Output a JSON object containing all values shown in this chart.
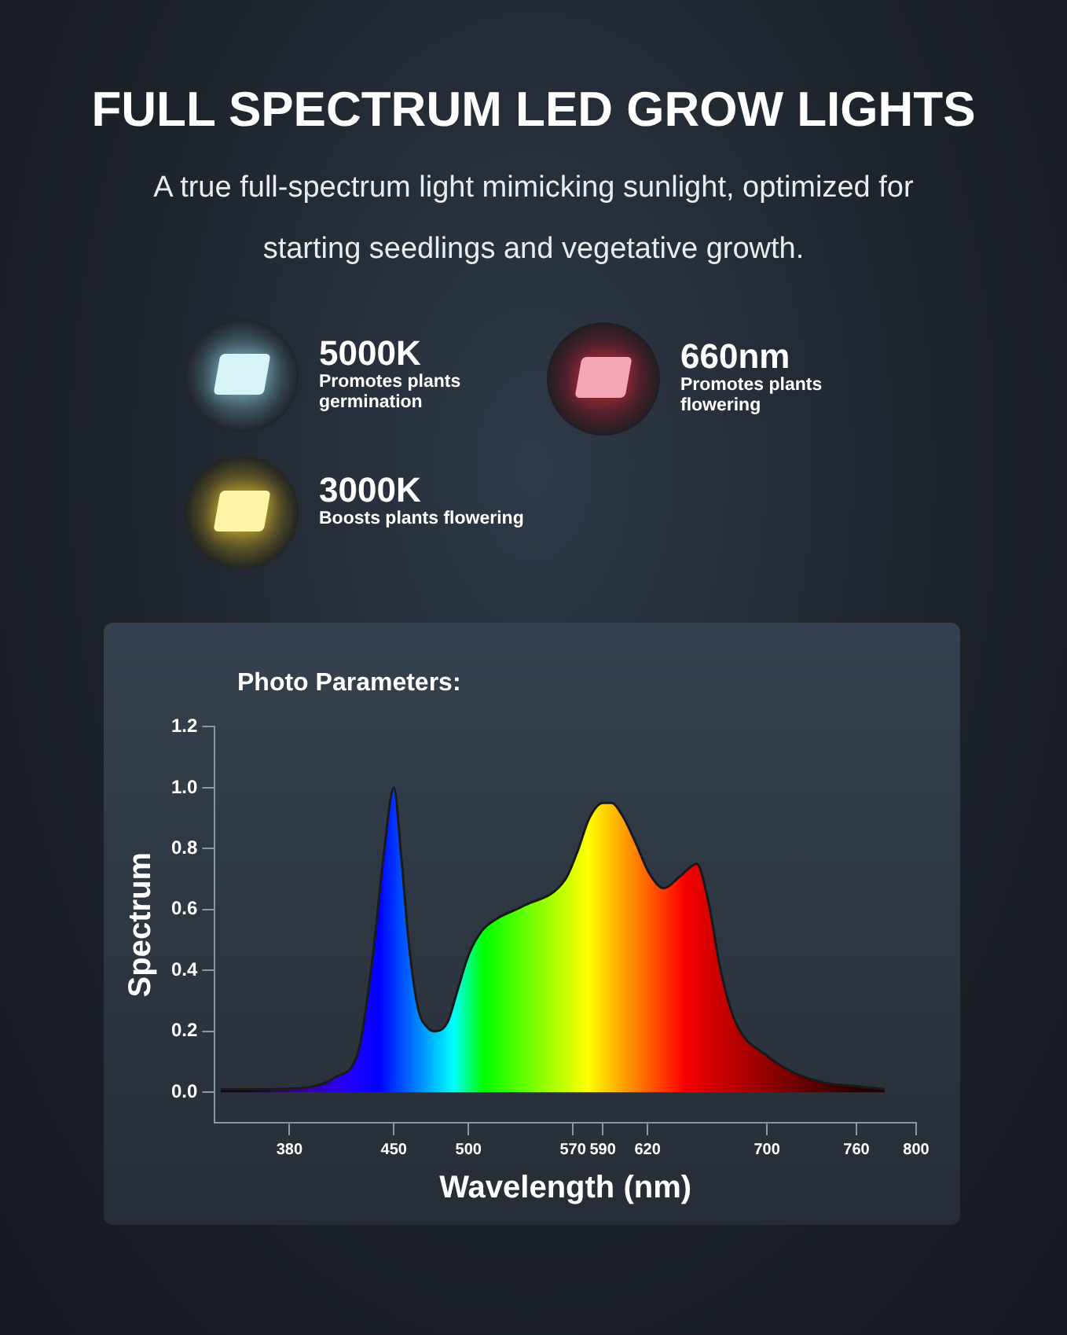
{
  "chart_data": {
    "type": "area",
    "title": "FULL SPECTRUM LED GROW LIGHTS",
    "subtitle": "A true full-spectrum light mimicking sunlight, optimized for starting seedlings and vegetative growth.",
    "annotations": [
      "Photo Parameters:",
      "5000K",
      "Promotes plants germination",
      "660nm",
      "Promotes plants flowering",
      "3000K",
      "Boosts plants flowering"
    ],
    "xlabel": "Wavelength (nm)",
    "ylabel": "Spectrum",
    "xlim": [
      330,
      800
    ],
    "xticks": [
      380,
      450,
      500,
      570,
      590,
      620,
      700,
      760,
      800
    ],
    "ylim": [
      -0.1,
      1.2
    ],
    "yticks": [
      {
        "value": 0,
        "label": "0.0"
      },
      {
        "value": 0.2,
        "label": "0.2"
      },
      {
        "value": 0.4,
        "label": "0.4"
      },
      {
        "value": 0.6,
        "label": "0.6"
      },
      {
        "value": 0.8,
        "label": "0.8"
      },
      {
        "value": 1.0,
        "label": "1.0"
      },
      {
        "value": 1.2,
        "label": "1.2"
      }
    ],
    "series": [
      {
        "color": "#1a1a1a",
        "x": [
          334,
          368,
          397,
          411,
          426,
          436,
          443,
          450,
          455,
          460,
          466,
          473,
          478,
          486,
          493,
          500,
          509,
          519,
          536,
          565,
          573,
          581,
          590,
          596,
          603,
          612,
          621,
          631,
          642,
          653,
          661,
          669,
          679,
          700,
          720,
          740,
          760,
          779
        ],
        "values": [
          0.01,
          0.01,
          0.02,
          0.05,
          0.13,
          0.45,
          0.77,
          1.0,
          0.77,
          0.49,
          0.28,
          0.21,
          0.2,
          0.23,
          0.34,
          0.45,
          0.53,
          0.57,
          0.61,
          0.7,
          0.79,
          0.9,
          0.95,
          0.95,
          0.91,
          0.82,
          0.72,
          0.67,
          0.71,
          0.75,
          0.62,
          0.4,
          0.23,
          0.12,
          0.06,
          0.03,
          0.02,
          0.01
        ]
      }
    ]
  }
}
